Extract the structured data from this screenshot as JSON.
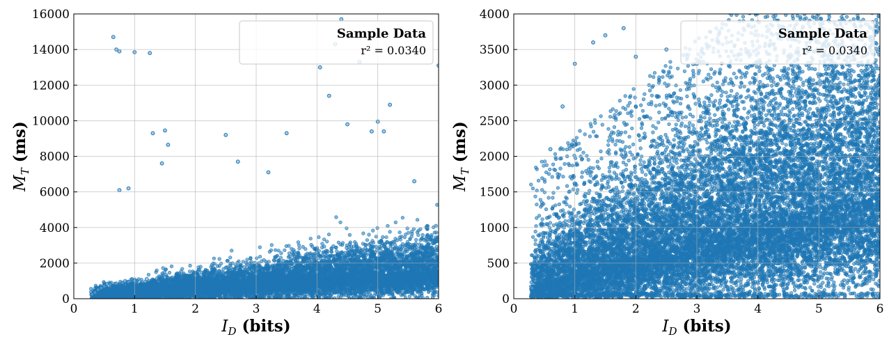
{
  "chart_data": [
    {
      "type": "scatter",
      "title": "",
      "xlabel": "I_D (bits)",
      "ylabel": "M_T (ms)",
      "xlim": [
        0,
        6
      ],
      "ylim": [
        0,
        16000
      ],
      "xticks": [
        0,
        1,
        2,
        3,
        4,
        5,
        6
      ],
      "yticks": [
        0,
        2000,
        4000,
        6000,
        8000,
        10000,
        12000,
        14000,
        16000
      ],
      "grid": true,
      "legend": {
        "title": "Sample Data",
        "text": "r² = 0.0340",
        "placement": "top-right"
      },
      "marker_color": "#1f77b4",
      "series": [
        {
          "x": [
            0.3,
            0.35,
            0.4,
            0.45,
            0.5,
            0.6,
            0.7,
            0.8,
            0.9,
            1.0,
            1.2,
            1.5,
            2.0,
            2.5,
            3.0,
            3.5,
            4.0,
            4.5,
            5.0,
            5.5,
            6.0,
            0.65,
            0.7,
            0.75,
            1.0,
            1.25,
            1.3,
            1.45,
            1.5,
            1.55,
            2.5,
            2.7,
            3.2,
            3.5,
            4.05,
            4.2,
            4.3,
            4.4,
            4.5,
            4.7,
            4.9,
            5.0,
            5.1,
            5.2,
            5.6,
            6.0,
            0.75,
            0.9
          ],
          "y": [
            250,
            350,
            500,
            600,
            700,
            800,
            850,
            900,
            950,
            1000,
            1100,
            1200,
            1300,
            1350,
            1400,
            1450,
            1500,
            1550,
            1600,
            1650,
            1700,
            14700,
            14000,
            13900,
            13850,
            13800,
            9300,
            7600,
            9450,
            8650,
            9200,
            7700,
            7100,
            9300,
            13000,
            11400,
            14300,
            15700,
            9800,
            13300,
            9400,
            9950,
            9400,
            10900,
            6600,
            13100,
            6100,
            6200
          ]
        }
      ]
    },
    {
      "type": "scatter",
      "title": "",
      "xlabel": "I_D (bits)",
      "ylabel": "M_T (ms)",
      "xlim": [
        0,
        6
      ],
      "ylim": [
        0,
        4000
      ],
      "xticks": [
        0,
        1,
        2,
        3,
        4,
        5,
        6
      ],
      "yticks": [
        0,
        500,
        1000,
        1500,
        2000,
        2500,
        3000,
        3500,
        4000
      ],
      "grid": true,
      "legend": {
        "title": "Sample Data",
        "text": "r² = 0.0340",
        "placement": "top-right"
      },
      "marker_color": "#1f77b4",
      "series": [
        {
          "x": [
            0.3,
            0.35,
            0.4,
            0.5,
            0.6,
            0.7,
            0.8,
            0.9,
            1.0,
            1.2,
            1.5,
            2.0,
            2.5,
            3.0,
            3.5,
            4.0,
            4.5,
            5.0,
            5.5,
            6.0,
            0.6,
            0.8,
            1.0,
            1.3,
            1.5,
            1.8,
            2.0,
            2.5,
            3.0,
            3.5,
            4.0,
            4.5,
            5.0,
            5.5,
            6.0
          ],
          "y": [
            150,
            250,
            400,
            550,
            650,
            700,
            750,
            800,
            850,
            900,
            950,
            1000,
            1050,
            1100,
            1150,
            1200,
            1250,
            1300,
            1350,
            1400,
            2100,
            2700,
            3300,
            3600,
            3700,
            3800,
            3400,
            3500,
            3300,
            3600,
            3700,
            3400,
            3600,
            3200,
            3100
          ]
        }
      ]
    }
  ]
}
